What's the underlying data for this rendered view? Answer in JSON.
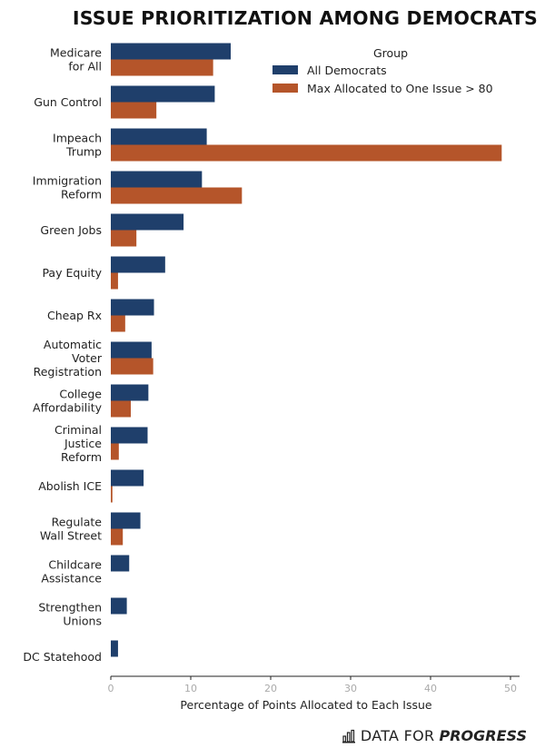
{
  "title": "ISSUE PRIORITIZATION AMONG DEMOCRATS",
  "footer": {
    "brand_part1": "DATA FOR",
    "brand_part2": "PROGRESS",
    "icon": "bar-chart-icon"
  },
  "chart_data": {
    "type": "bar",
    "orientation": "horizontal",
    "title": "ISSUE PRIORITIZATION AMONG DEMOCRATS",
    "xlabel": "Percentage of Points Allocated to Each Issue",
    "ylabel": "",
    "xlim": [
      0,
      50
    ],
    "xticks": [
      0,
      10,
      20,
      30,
      40,
      50
    ],
    "grid": false,
    "legend": {
      "title": "Group",
      "placement": "top-right"
    },
    "categories": [
      [
        "Medicare",
        "for All"
      ],
      [
        "Gun Control"
      ],
      [
        "Impeach",
        "Trump"
      ],
      [
        "Immigration",
        "Reform"
      ],
      [
        "Green Jobs"
      ],
      [
        "Pay Equity"
      ],
      [
        "Cheap Rx"
      ],
      [
        "Automatic",
        "Voter",
        "Registration"
      ],
      [
        "College",
        "Affordability"
      ],
      [
        "Criminal",
        "Justice",
        "Reform"
      ],
      [
        "Abolish ICE"
      ],
      [
        "Regulate",
        "Wall Street"
      ],
      [
        "Childcare",
        "Assistance"
      ],
      [
        "Strengthen",
        "Unions"
      ],
      [
        "DC Statehood"
      ]
    ],
    "series": [
      {
        "name": "All Democrats",
        "color": "#1f3f6b",
        "values": [
          15.0,
          13.0,
          12.0,
          11.4,
          9.1,
          6.8,
          5.4,
          5.1,
          4.7,
          4.6,
          4.1,
          3.7,
          2.3,
          2.0,
          0.9
        ]
      },
      {
        "name": "Max Allocated to One Issue > 80",
        "color": "#b5552a",
        "values": [
          12.8,
          5.7,
          48.9,
          16.4,
          3.2,
          0.9,
          1.8,
          5.3,
          2.5,
          1.0,
          0.2,
          1.5,
          0,
          0,
          0
        ]
      }
    ]
  }
}
